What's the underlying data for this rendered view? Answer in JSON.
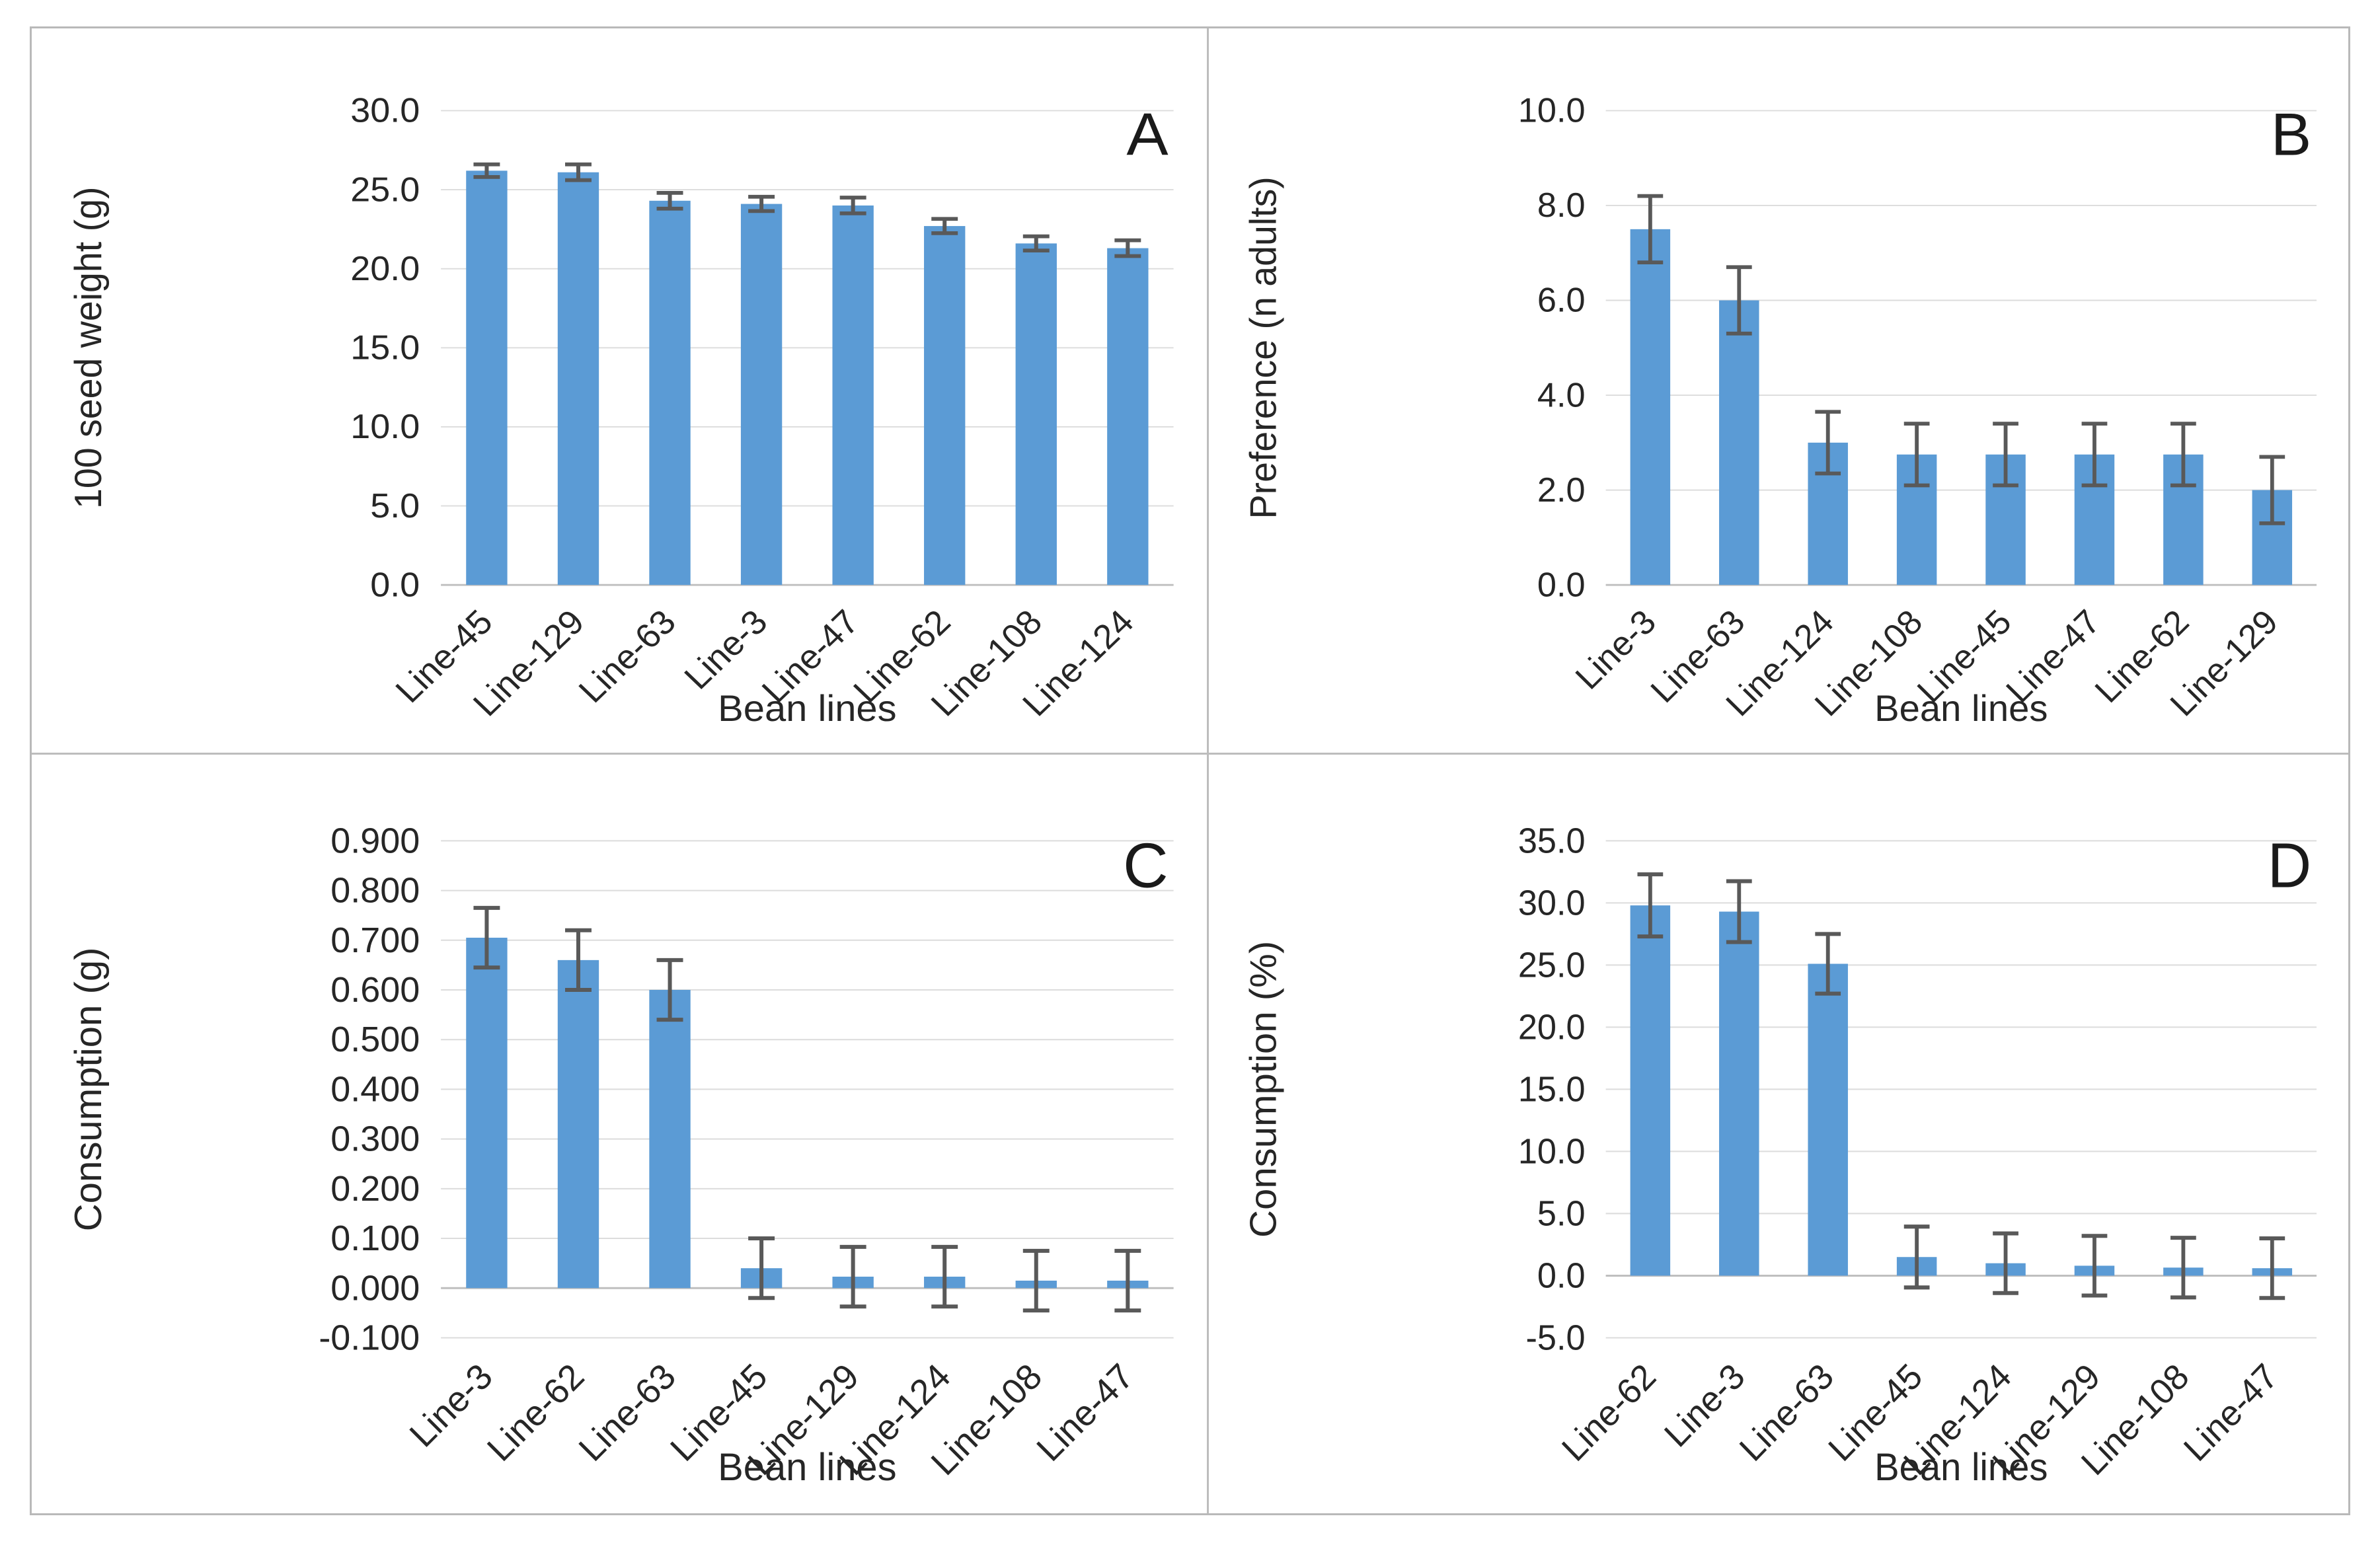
{
  "figure": {
    "panel_grid": "2x2",
    "shared_x_title": "Bean lines"
  },
  "colors": {
    "bar": "#5B9BD5",
    "error_bar": "#595959",
    "gridline": "#DCDCDC",
    "axis_line": "#BFBFBF",
    "text": "#262626",
    "panel_border": "#BDBDBD"
  },
  "chart_data": [
    {
      "type": "bar",
      "panel_letter": "A",
      "ylabel": "100 seed weight (g)",
      "xlabel": "Bean lines",
      "ymin": 0,
      "ymax": 30,
      "ystep": 5,
      "decimals": 1,
      "grid": true,
      "legend": "none",
      "categories": [
        "Line-45",
        "Line-129",
        "Line-63",
        "Line-3",
        "Line-47",
        "Line-62",
        "Line-108",
        "Line-124"
      ],
      "values": [
        26.2,
        26.1,
        24.3,
        24.1,
        24.0,
        22.7,
        21.6,
        21.3
      ],
      "errors": [
        0.4,
        0.5,
        0.5,
        0.45,
        0.5,
        0.45,
        0.45,
        0.5
      ]
    },
    {
      "type": "bar",
      "panel_letter": "B",
      "ylabel": "Preference (n adults)",
      "xlabel": "Bean lines",
      "ymin": 0,
      "ymax": 10,
      "ystep": 2,
      "decimals": 1,
      "grid": true,
      "legend": "none",
      "categories": [
        "Line-3",
        "Line-63",
        "Line-124",
        "Line-108",
        "Line-45",
        "Line-47",
        "Line-62",
        "Line-129"
      ],
      "values": [
        7.5,
        6.0,
        3.0,
        2.75,
        2.75,
        2.75,
        2.75,
        2.0
      ],
      "errors": [
        0.7,
        0.7,
        0.65,
        0.65,
        0.65,
        0.65,
        0.65,
        0.7
      ]
    },
    {
      "type": "bar",
      "panel_letter": "C",
      "ylabel": "Consumption (g)",
      "xlabel": "Bean lines",
      "ymin": -0.1,
      "ymax": 0.9,
      "ystep": 0.1,
      "decimals": 3,
      "grid": true,
      "legend": "none",
      "categories": [
        "Line-3",
        "Line-62",
        "Line-63",
        "Line-45",
        "Line-129",
        "Line-124",
        "Line-108",
        "Line-47"
      ],
      "values": [
        0.705,
        0.66,
        0.6,
        0.04,
        0.023,
        0.023,
        0.015,
        0.015
      ],
      "errors": [
        0.06,
        0.06,
        0.06,
        0.06,
        0.06,
        0.06,
        0.06,
        0.06
      ]
    },
    {
      "type": "bar",
      "panel_letter": "D",
      "ylabel": "Consumption (%)",
      "xlabel": "Bean lines",
      "ymin": -5,
      "ymax": 35,
      "ystep": 5,
      "decimals": 1,
      "grid": true,
      "legend": "none",
      "categories": [
        "Line-62",
        "Line-3",
        "Line-63",
        "Line-45",
        "Line-124",
        "Line-129",
        "Line-108",
        "Line-47"
      ],
      "values": [
        29.8,
        29.3,
        25.1,
        1.5,
        1.0,
        0.8,
        0.65,
        0.6
      ],
      "errors": [
        2.5,
        2.45,
        2.4,
        2.45,
        2.4,
        2.4,
        2.4,
        2.4
      ]
    }
  ]
}
